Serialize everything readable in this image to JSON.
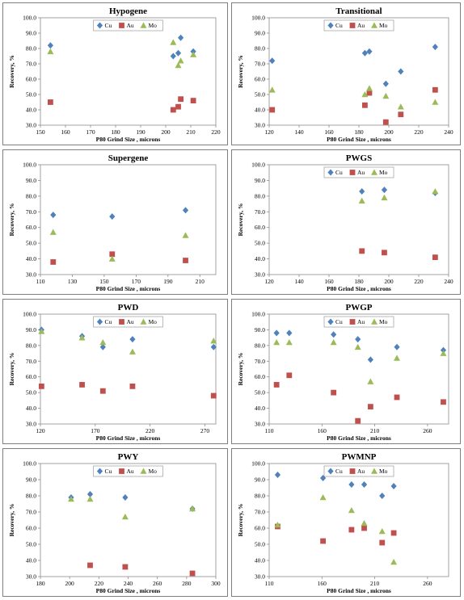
{
  "colors": {
    "Cu": "#4f81bd",
    "Au": "#c0504d",
    "Mo": "#9bbb59"
  },
  "chart_data": [
    {
      "type": "scatter",
      "title": "Hypogene",
      "xlabel": "P80 Grind Size , microns",
      "ylabel": "Recovery, %",
      "xlim": [
        150,
        220
      ],
      "xticks": [
        150,
        160,
        170,
        180,
        190,
        200,
        210,
        220
      ],
      "ylim": [
        30,
        100
      ],
      "yticks": [
        "30.0",
        "40.0",
        "50.0",
        "60.0",
        "70.0",
        "80.0",
        "90.0",
        "100.0"
      ],
      "legend": "top-center",
      "series": [
        {
          "name": "Cu",
          "marker": "diamond",
          "x": [
            154,
            203,
            205,
            206,
            211
          ],
          "y": [
            82,
            75,
            77,
            87,
            78
          ]
        },
        {
          "name": "Au",
          "marker": "square",
          "x": [
            154,
            203,
            205,
            206,
            211
          ],
          "y": [
            45,
            40,
            42,
            47,
            46
          ]
        },
        {
          "name": "Mo",
          "marker": "triangle",
          "x": [
            154,
            203,
            205,
            206,
            211
          ],
          "y": [
            78,
            84,
            69,
            72,
            76
          ]
        }
      ]
    },
    {
      "type": "scatter",
      "title": "Transitional",
      "xlabel": "P80 Grind Size , microns",
      "ylabel": "Recovery, %",
      "xlim": [
        120,
        240
      ],
      "xticks": [
        120,
        140,
        160,
        180,
        200,
        220,
        240
      ],
      "ylim": [
        30,
        100
      ],
      "yticks": [
        "30.0",
        "40.0",
        "50.0",
        "60.0",
        "70.0",
        "80.0",
        "90.0",
        "100.0"
      ],
      "legend": "top-center",
      "series": [
        {
          "name": "Cu",
          "marker": "diamond",
          "x": [
            122,
            184,
            187,
            198,
            208,
            231
          ],
          "y": [
            72,
            77,
            78,
            57,
            65,
            81
          ]
        },
        {
          "name": "Au",
          "marker": "square",
          "x": [
            122,
            184,
            187,
            198,
            208,
            231
          ],
          "y": [
            40,
            43,
            51,
            32,
            37,
            53
          ]
        },
        {
          "name": "Mo",
          "marker": "triangle",
          "x": [
            122,
            184,
            187,
            198,
            208,
            231
          ],
          "y": [
            53,
            50,
            54,
            49,
            42,
            45
          ]
        }
      ]
    },
    {
      "type": "scatter",
      "title": "Supergene",
      "xlabel": "P80 Grind Size , microns",
      "ylabel": "Recovery, %",
      "xlim": [
        110,
        220
      ],
      "xticks": [
        110,
        130,
        150,
        170,
        190,
        210
      ],
      "ylim": [
        30,
        100
      ],
      "yticks": [
        "30.0",
        "40.0",
        "50.0",
        "60.0",
        "70.0",
        "80.0",
        "90.0",
        "100.0"
      ],
      "legend": "none",
      "series": [
        {
          "name": "Cu",
          "marker": "diamond",
          "x": [
            118,
            155,
            201
          ],
          "y": [
            68,
            67,
            71
          ]
        },
        {
          "name": "Au",
          "marker": "square",
          "x": [
            118,
            155,
            201
          ],
          "y": [
            38,
            43,
            39
          ]
        },
        {
          "name": "Mo",
          "marker": "triangle",
          "x": [
            118,
            155,
            201
          ],
          "y": [
            57,
            40,
            55
          ]
        }
      ]
    },
    {
      "type": "scatter",
      "title": "PWGS",
      "xlabel": "P80 Grind Size , microns",
      "ylabel": "Recovery, %",
      "xlim": [
        120,
        240
      ],
      "xticks": [
        120,
        140,
        160,
        180,
        200,
        220,
        240
      ],
      "ylim": [
        30,
        100
      ],
      "yticks": [
        "30.0",
        "40.0",
        "50.0",
        "60.0",
        "70.0",
        "80.0",
        "90.0",
        "100.0"
      ],
      "legend": "top-center",
      "series": [
        {
          "name": "Cu",
          "marker": "diamond",
          "x": [
            182,
            197,
            231
          ],
          "y": [
            83,
            84,
            82
          ]
        },
        {
          "name": "Au",
          "marker": "square",
          "x": [
            182,
            197,
            231
          ],
          "y": [
            45,
            44,
            41
          ]
        },
        {
          "name": "Mo",
          "marker": "triangle",
          "x": [
            182,
            197,
            231
          ],
          "y": [
            77,
            79,
            83
          ]
        }
      ]
    },
    {
      "type": "scatter",
      "title": "PWD",
      "xlabel": "P80 Grind Size , microns",
      "ylabel": "Recovery, %",
      "xlim": [
        120,
        280
      ],
      "xticks": [
        120,
        170,
        220,
        270
      ],
      "ylim": [
        30,
        100
      ],
      "yticks": [
        "30.0",
        "40.0",
        "50.0",
        "60.0",
        "70.0",
        "80.0",
        "90.0",
        "100.0"
      ],
      "legend": "top-center",
      "series": [
        {
          "name": "Cu",
          "marker": "diamond",
          "x": [
            121,
            158,
            177,
            204,
            278
          ],
          "y": [
            90,
            86,
            79,
            84,
            79
          ]
        },
        {
          "name": "Au",
          "marker": "square",
          "x": [
            121,
            158,
            177,
            204,
            278
          ],
          "y": [
            54,
            55,
            51,
            54,
            48
          ]
        },
        {
          "name": "Mo",
          "marker": "triangle",
          "x": [
            121,
            158,
            177,
            204,
            278
          ],
          "y": [
            89,
            85,
            82,
            76,
            83
          ]
        }
      ]
    },
    {
      "type": "scatter",
      "title": "PWGP",
      "xlabel": "P80 Grind Size , microns",
      "ylabel": "Recovery, %",
      "xlim": [
        110,
        280
      ],
      "xticks": [
        110,
        160,
        210,
        260
      ],
      "ylim": [
        30,
        100
      ],
      "yticks": [
        "30.0",
        "40.0",
        "50.0",
        "60.0",
        "70.0",
        "80.0",
        "90.0",
        "100.0"
      ],
      "legend": "top-center",
      "series": [
        {
          "name": "Cu",
          "marker": "diamond",
          "x": [
            117,
            129,
            171,
            194,
            206,
            231,
            275
          ],
          "y": [
            88,
            88,
            87,
            84,
            71,
            79,
            77
          ]
        },
        {
          "name": "Au",
          "marker": "square",
          "x": [
            117,
            129,
            171,
            194,
            206,
            231,
            275
          ],
          "y": [
            55,
            61,
            50,
            32,
            41,
            47,
            44
          ]
        },
        {
          "name": "Mo",
          "marker": "triangle",
          "x": [
            117,
            129,
            171,
            194,
            206,
            231,
            275
          ],
          "y": [
            82,
            82,
            82,
            79,
            57,
            72,
            75
          ]
        }
      ]
    },
    {
      "type": "scatter",
      "title": "PWY",
      "xlabel": "P80 Grind Size , microns",
      "ylabel": "Recovery, %",
      "xlim": [
        180,
        300
      ],
      "xticks": [
        180,
        200,
        220,
        240,
        260,
        280,
        300
      ],
      "ylim": [
        30,
        100
      ],
      "yticks": [
        "30.0",
        "40.0",
        "50.0",
        "60.0",
        "70.0",
        "80.0",
        "90.0",
        "100.0"
      ],
      "legend": "top-center",
      "series": [
        {
          "name": "Cu",
          "marker": "diamond",
          "x": [
            201,
            214,
            238,
            284
          ],
          "y": [
            79,
            81,
            79,
            72
          ]
        },
        {
          "name": "Au",
          "marker": "square",
          "x": [
            201,
            214,
            238,
            284
          ],
          "y": [
            null,
            37,
            36,
            32
          ]
        },
        {
          "name": "Mo",
          "marker": "triangle",
          "x": [
            201,
            214,
            238,
            284
          ],
          "y": [
            78,
            78,
            67,
            72
          ]
        }
      ]
    },
    {
      "type": "scatter",
      "title": "PWMNP",
      "xlabel": "P80 Grind Size , microns",
      "ylabel": "Recovery, %",
      "xlim": [
        110,
        280
      ],
      "xticks": [
        110,
        160,
        210,
        260
      ],
      "ylim": [
        30,
        100
      ],
      "yticks": [
        "30.0",
        "40.0",
        "50.0",
        "60.0",
        "70.0",
        "80.0",
        "90.0",
        "100.0"
      ],
      "legend": "top-center",
      "series": [
        {
          "name": "Cu",
          "marker": "diamond",
          "x": [
            118,
            161,
            188,
            200,
            217,
            228
          ],
          "y": [
            93,
            91,
            87,
            87,
            80,
            86
          ]
        },
        {
          "name": "Au",
          "marker": "square",
          "x": [
            118,
            161,
            188,
            200,
            217,
            228
          ],
          "y": [
            61,
            52,
            59,
            60,
            51,
            57
          ]
        },
        {
          "name": "Mo",
          "marker": "triangle",
          "x": [
            118,
            161,
            188,
            200,
            217,
            228
          ],
          "y": [
            62,
            79,
            71,
            63,
            58,
            39
          ]
        }
      ]
    }
  ]
}
